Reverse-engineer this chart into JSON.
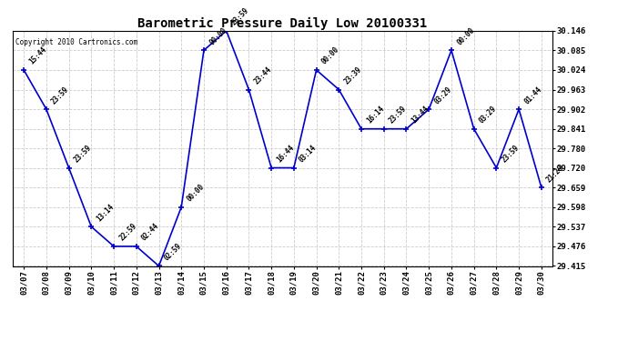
{
  "title": "Barometric Pressure Daily Low 20100331",
  "copyright": "Copyright 2010 Cartronics.com",
  "line_color": "#0000CC",
  "marker_color": "#0000CC",
  "background_color": "#ffffff",
  "grid_color": "#cccccc",
  "x_labels": [
    "03/07",
    "03/08",
    "03/09",
    "03/10",
    "03/11",
    "03/12",
    "03/13",
    "03/14",
    "03/15",
    "03/16",
    "03/17",
    "03/18",
    "03/19",
    "03/20",
    "03/21",
    "03/22",
    "03/23",
    "03/24",
    "03/25",
    "03/26",
    "03/27",
    "03/28",
    "03/29",
    "03/30"
  ],
  "y_values": [
    30.024,
    29.902,
    29.72,
    29.537,
    29.476,
    29.476,
    29.415,
    29.598,
    30.085,
    30.146,
    29.963,
    29.72,
    29.72,
    30.024,
    29.963,
    29.841,
    29.841,
    29.841,
    29.902,
    30.085,
    29.841,
    29.72,
    29.902,
    29.659
  ],
  "time_labels": [
    "15:44",
    "23:59",
    "23:59",
    "13:14",
    "22:59",
    "02:44",
    "02:59",
    "00:00",
    "00:00",
    "23:59",
    "23:44",
    "16:44",
    "03:14",
    "00:00",
    "23:39",
    "16:14",
    "23:59",
    "13:44",
    "03:29",
    "00:00",
    "03:29",
    "23:59",
    "01:44",
    "21:29"
  ],
  "ylim_min": 29.415,
  "ylim_max": 30.146,
  "yticks": [
    29.415,
    29.476,
    29.537,
    29.598,
    29.659,
    29.72,
    29.78,
    29.841,
    29.902,
    29.963,
    30.024,
    30.085,
    30.146
  ]
}
